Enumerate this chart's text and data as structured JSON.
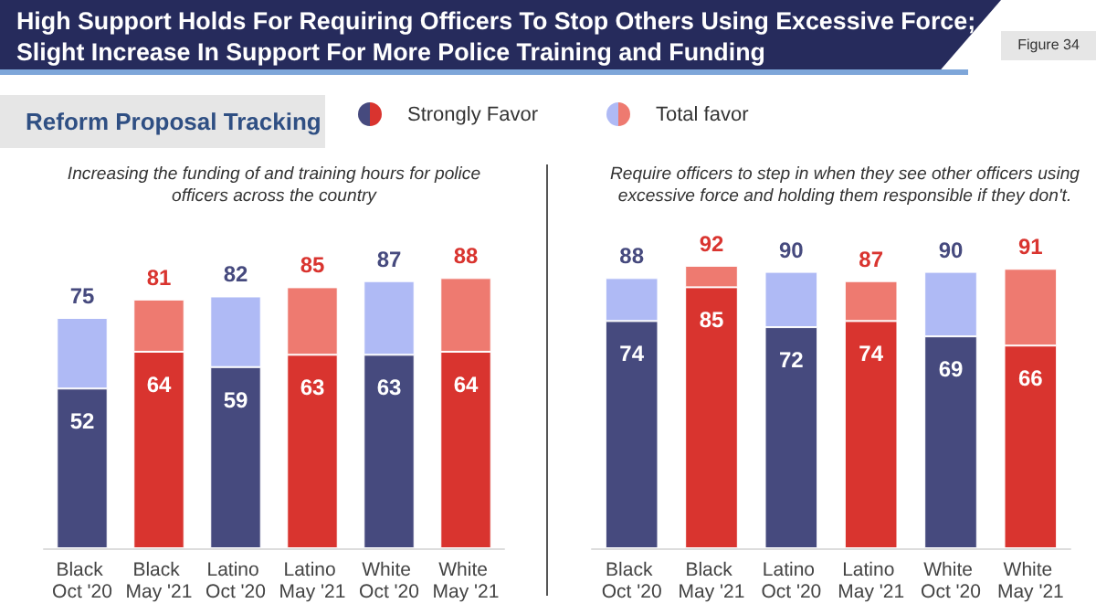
{
  "chart_data": [
    {
      "type": "bar",
      "title": "High Support Holds For Requiring Officers To Stop Others Using Excessive Force; Slight Increase In Support For More Police Training and Funding",
      "subtitle": "Increasing the funding of and training hours for police officers across the country",
      "annotations": [
        "Figure 34",
        "Reform Proposal Tracking"
      ],
      "legend": "top",
      "stacked": true,
      "categories": [
        "Black Oct '20",
        "Black May '21",
        "Latino Oct '20",
        "Latino May '21",
        "White Oct '20",
        "White May '21"
      ],
      "series": [
        {
          "name": "Strongly Favor",
          "colors": [
            "#464a7e",
            "#d9342f",
            "#464a7e",
            "#d9342f",
            "#464a7e",
            "#d9342f"
          ],
          "values": [
            52,
            64,
            59,
            63,
            63,
            64
          ],
          "value_labels": [
            "52",
            "64",
            "59",
            "63",
            "63",
            "64"
          ]
        },
        {
          "name": "Total favor",
          "colors": [
            "#afbaf5",
            "#ee7a70",
            "#afbaf5",
            "#ee7a70",
            "#afbaf5",
            "#ee7a70"
          ],
          "values": [
            23,
            17,
            23,
            22,
            24,
            24
          ]
        }
      ],
      "totals": [
        "75",
        "81",
        "82",
        "85",
        "87",
        "88"
      ]
    },
    {
      "type": "bar",
      "subtitle": "Require officers to step in when they see other officers using excessive force and holding them responsible if they don't.",
      "stacked": true,
      "categories": [
        "Black Oct '20",
        "Black May '21",
        "Latino Oct '20",
        "Latino May '21",
        "White Oct '20",
        "White May '21"
      ],
      "series": [
        {
          "colors": [
            "#464a7e",
            "#d9342f",
            "#464a7e",
            "#d9342f",
            "#464a7e",
            "#d9342f"
          ],
          "values": [
            74,
            85,
            72,
            74,
            69,
            66
          ],
          "value_labels": [
            "74",
            "85",
            "72",
            "74",
            "69",
            "66"
          ]
        },
        {
          "colors": [
            "#afbaf5",
            "#ee7a70",
            "#afbaf5",
            "#ee7a70",
            "#afbaf5",
            "#ee7a70"
          ],
          "values": [
            14,
            7,
            18,
            13,
            21,
            25
          ]
        }
      ],
      "totals": [
        "88",
        "92",
        "90",
        "87",
        "90",
        "91"
      ]
    }
  ]
}
